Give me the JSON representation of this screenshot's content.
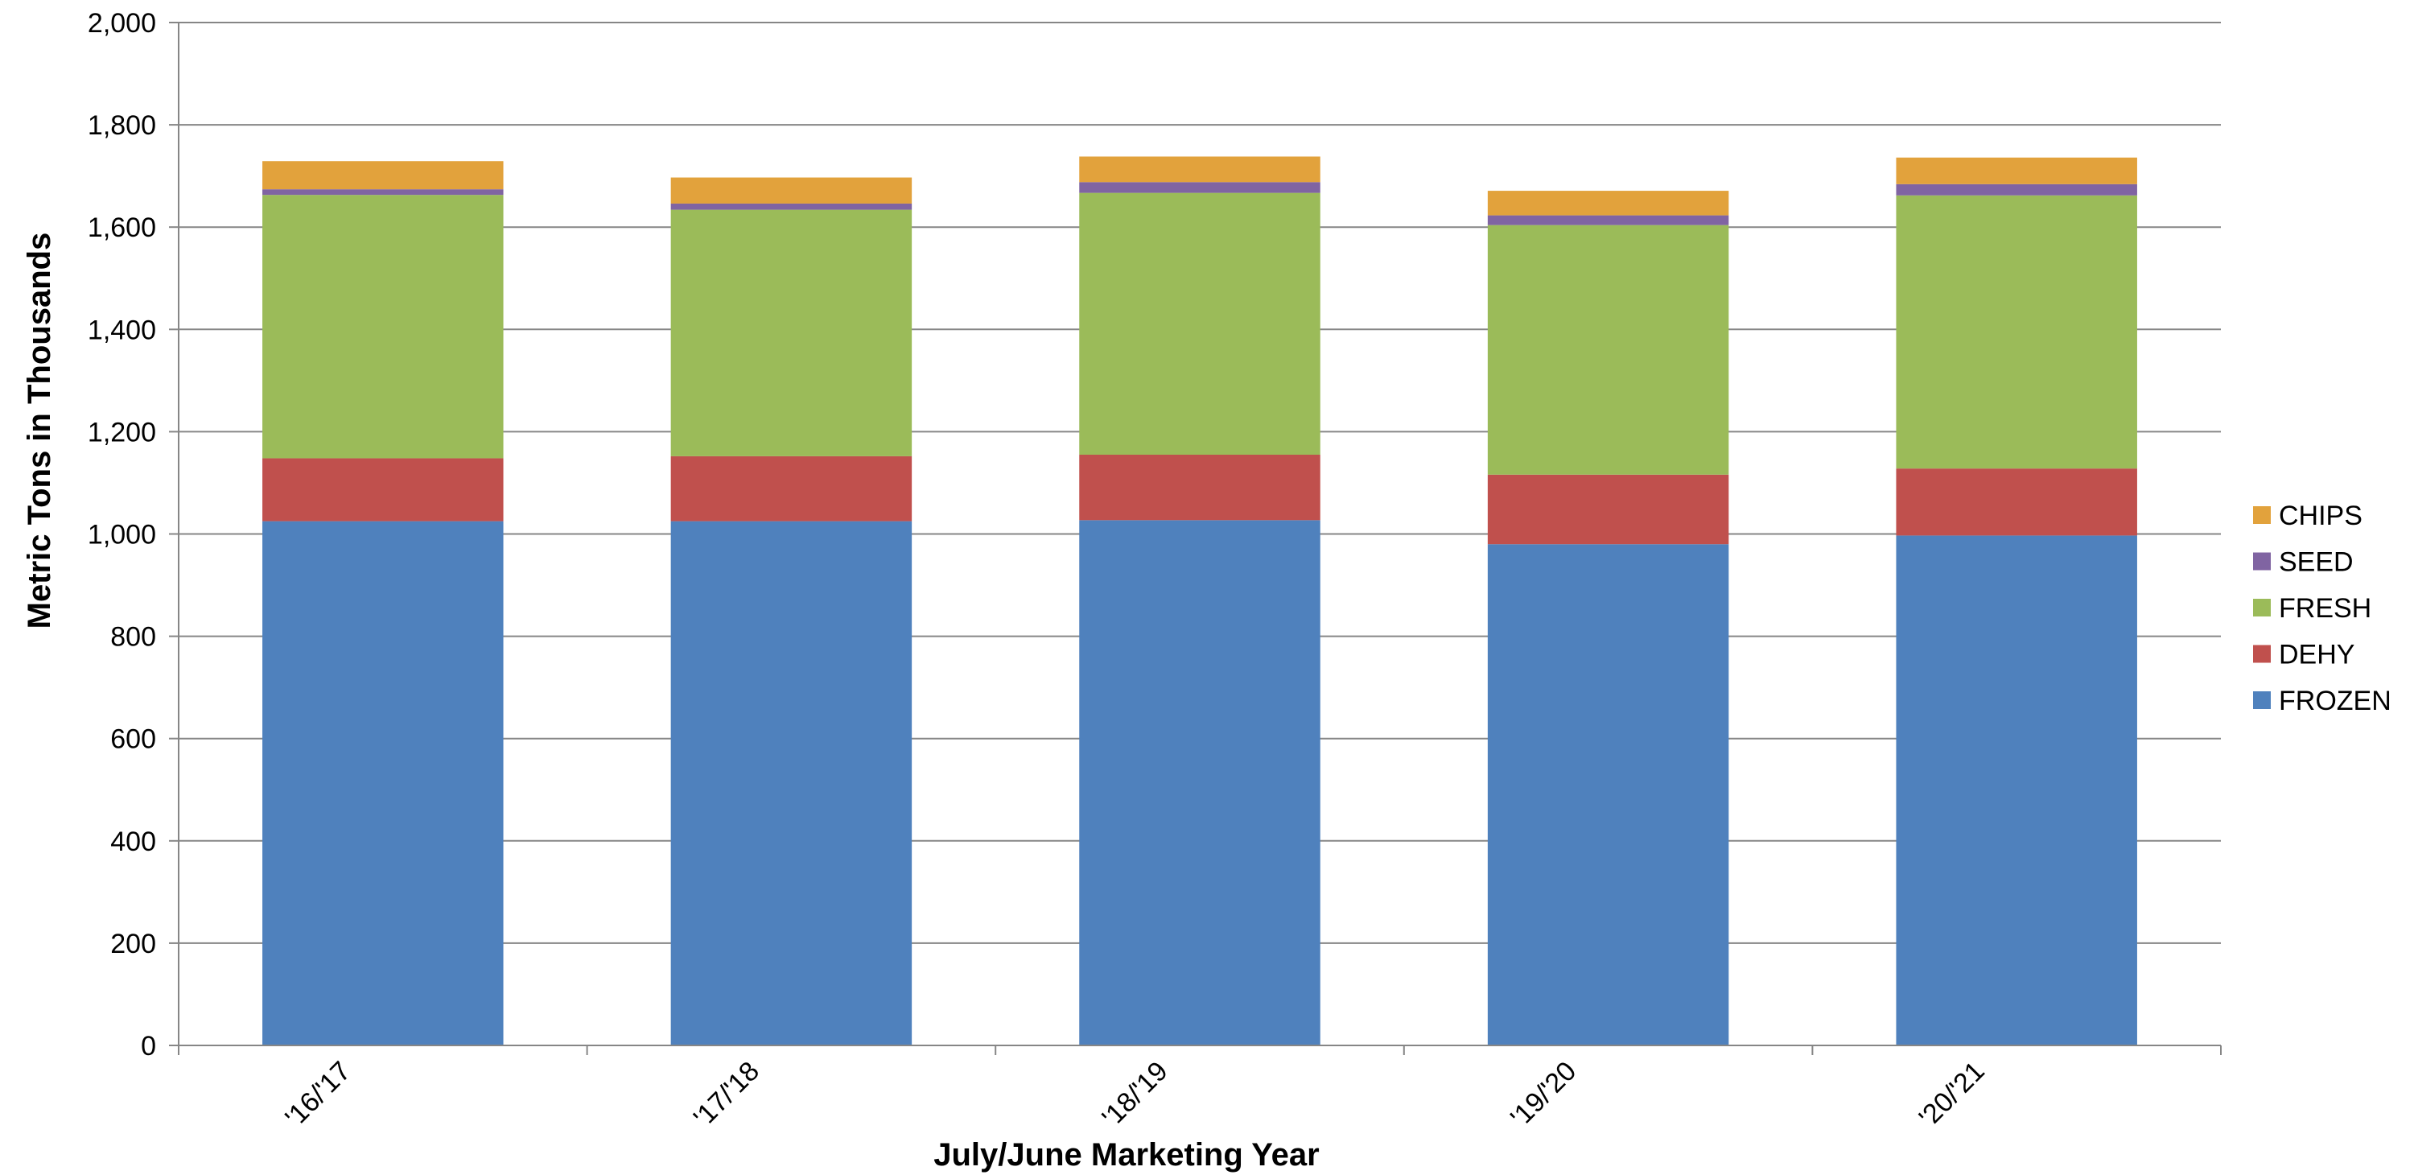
{
  "chart_data": {
    "type": "bar",
    "stacked": true,
    "title": "",
    "xlabel": "July/June Marketing Year",
    "ylabel": "Metric Tons  in Thousands",
    "categories": [
      "'16/'17",
      "'17/'18",
      "'18/'19",
      "'19/'20",
      "'20/'21"
    ],
    "ylim": [
      0,
      2000
    ],
    "yticks": [
      0,
      200,
      400,
      600,
      800,
      1000,
      1200,
      1400,
      1600,
      1800,
      2000
    ],
    "ytick_labels": [
      "0",
      "200",
      "400",
      "600",
      "800",
      "1,000",
      "1,200",
      "1,400",
      "1,600",
      "1,800",
      "2,000"
    ],
    "grid": true,
    "legend_position": "right",
    "series": [
      {
        "name": "FROZEN",
        "color": "#4F81BD",
        "values": [
          1025,
          1025,
          1027,
          980,
          997
        ]
      },
      {
        "name": "DEHY",
        "color": "#C0504D",
        "values": [
          123,
          127,
          128,
          136,
          131
        ]
      },
      {
        "name": "FRESH",
        "color": "#9BBB59",
        "values": [
          515,
          482,
          512,
          488,
          534
        ]
      },
      {
        "name": "SEED",
        "color": "#8064A2",
        "values": [
          11,
          12,
          21,
          19,
          22
        ]
      },
      {
        "name": "CHIPS",
        "color": "#E2A23C",
        "values": [
          55,
          51,
          50,
          48,
          52
        ]
      }
    ]
  }
}
